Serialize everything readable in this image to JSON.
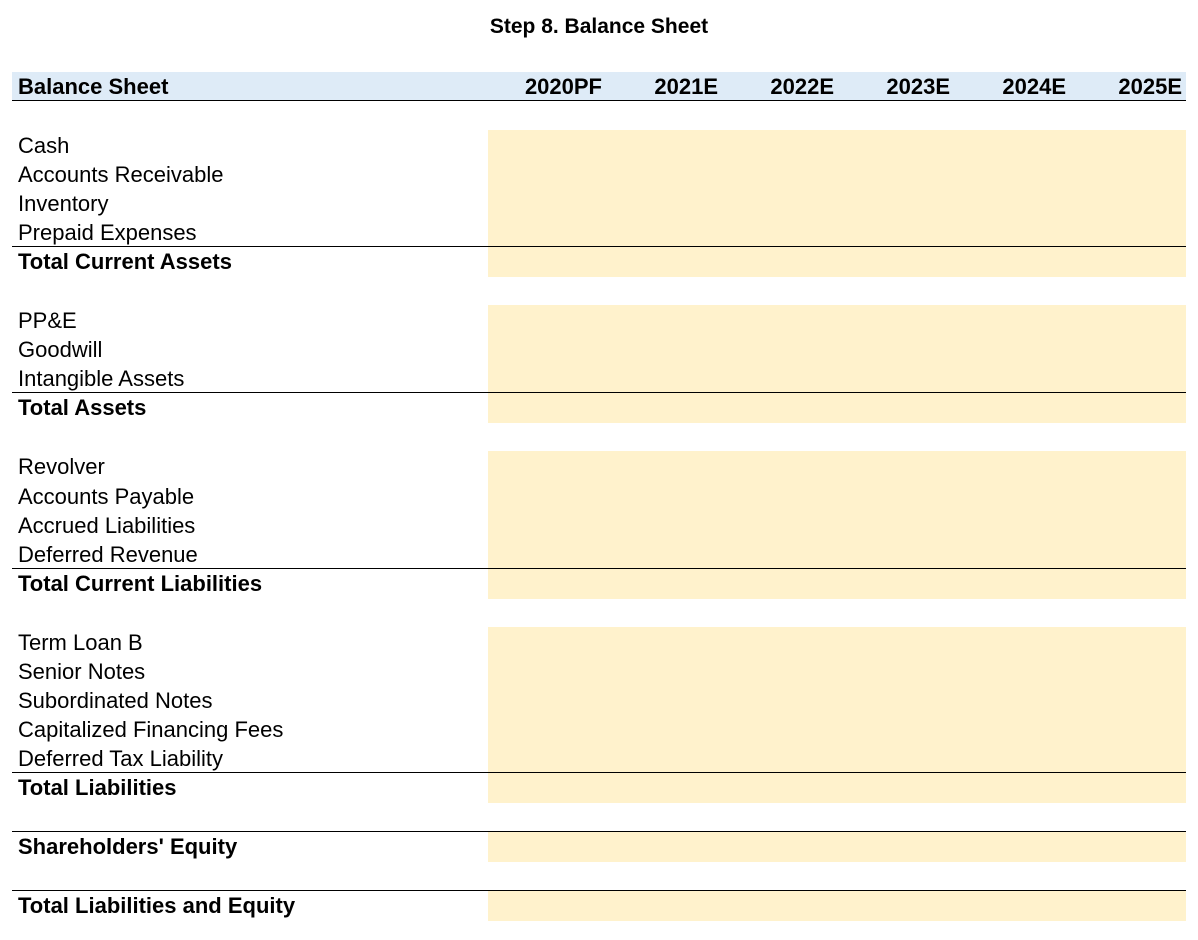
{
  "title": "Step 8. Balance Sheet",
  "header": {
    "label": "Balance Sheet",
    "years": [
      "2020PF",
      "2021E",
      "2022E",
      "2023E",
      "2024E",
      "2025E"
    ]
  },
  "rows": {
    "cash": "Cash",
    "accounts_receivable": "Accounts Receivable",
    "inventory": "Inventory",
    "prepaid_expenses": "Prepaid Expenses",
    "total_current_assets": "Total Current Assets",
    "ppe": "PP&E",
    "goodwill": "Goodwill",
    "intangible_assets": "Intangible Assets",
    "total_assets": "Total Assets",
    "revolver": "Revolver",
    "accounts_payable": "Accounts Payable",
    "accrued_liabilities": "Accrued Liabilities",
    "deferred_revenue": "Deferred Revenue",
    "total_current_liabilities": "Total Current Liabilities",
    "term_loan_b": "Term Loan B",
    "senior_notes": "Senior Notes",
    "subordinated_notes": "Subordinated Notes",
    "capitalized_financing_fees": "Capitalized Financing Fees",
    "deferred_tax_liability": "Deferred Tax Liability",
    "total_liabilities": "Total Liabilities",
    "shareholders_equity": "Shareholders' Equity",
    "total_liabilities_and_equity": "Total Liabilities and Equity"
  },
  "colors": {
    "header_fill": "#deebf7",
    "input_fill": "#fff2cc"
  }
}
